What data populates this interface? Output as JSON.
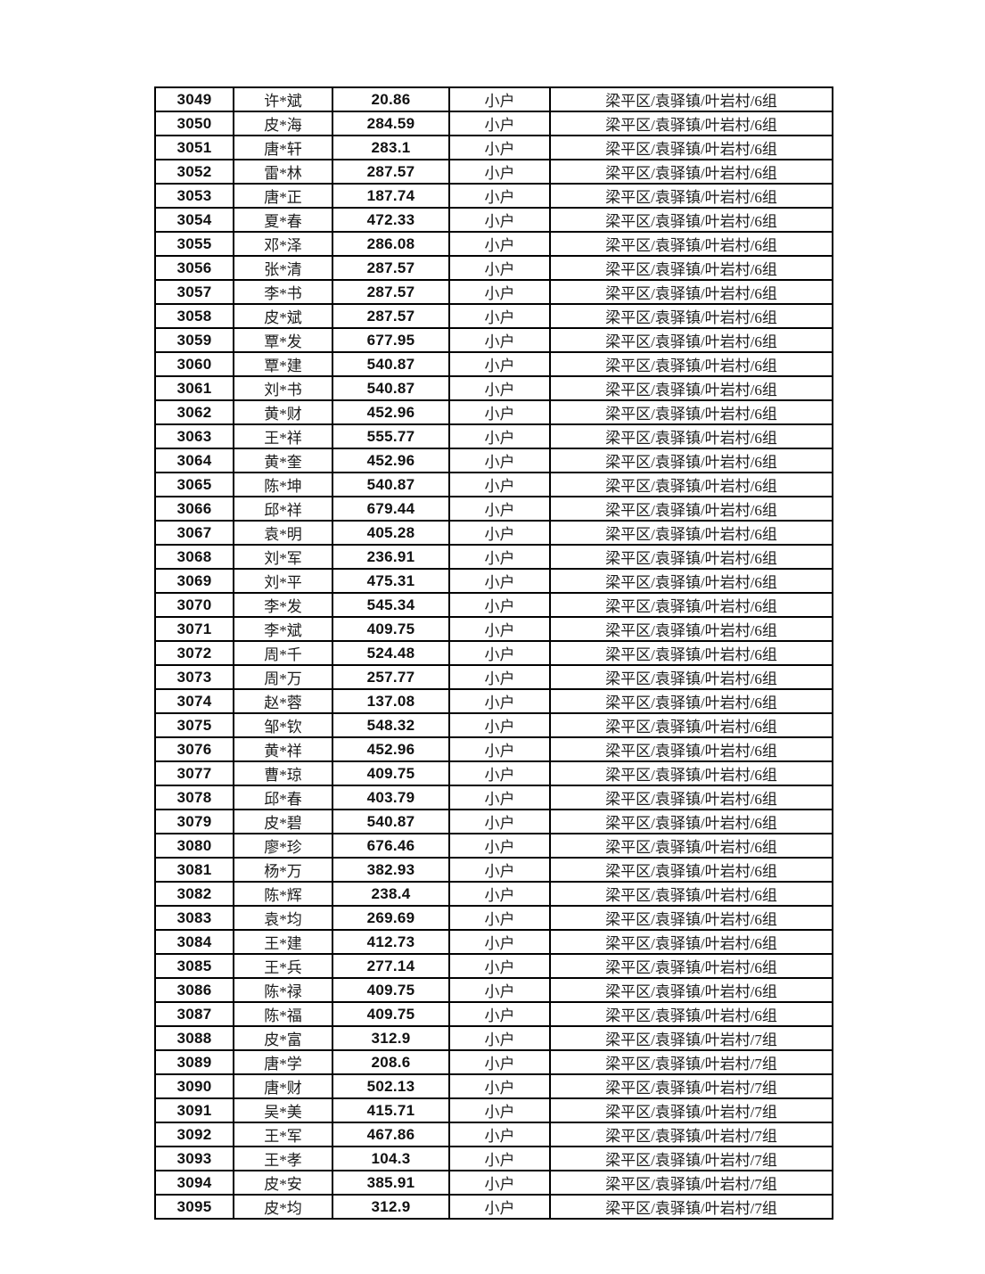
{
  "page": {
    "background_color": "#ffffff",
    "border_color": "#000000",
    "text_color": "#111111"
  },
  "table": {
    "columns": [
      "id",
      "name",
      "amount",
      "household-type",
      "address"
    ],
    "rows": [
      [
        "3049",
        "许*斌",
        "20.86",
        "小户",
        "梁平区/袁驿镇/叶岩村/6组"
      ],
      [
        "3050",
        "皮*海",
        "284.59",
        "小户",
        "梁平区/袁驿镇/叶岩村/6组"
      ],
      [
        "3051",
        "唐*轩",
        "283.1",
        "小户",
        "梁平区/袁驿镇/叶岩村/6组"
      ],
      [
        "3052",
        "雷*林",
        "287.57",
        "小户",
        "梁平区/袁驿镇/叶岩村/6组"
      ],
      [
        "3053",
        "唐*正",
        "187.74",
        "小户",
        "梁平区/袁驿镇/叶岩村/6组"
      ],
      [
        "3054",
        "夏*春",
        "472.33",
        "小户",
        "梁平区/袁驿镇/叶岩村/6组"
      ],
      [
        "3055",
        "邓*泽",
        "286.08",
        "小户",
        "梁平区/袁驿镇/叶岩村/6组"
      ],
      [
        "3056",
        "张*清",
        "287.57",
        "小户",
        "梁平区/袁驿镇/叶岩村/6组"
      ],
      [
        "3057",
        "李*书",
        "287.57",
        "小户",
        "梁平区/袁驿镇/叶岩村/6组"
      ],
      [
        "3058",
        "皮*斌",
        "287.57",
        "小户",
        "梁平区/袁驿镇/叶岩村/6组"
      ],
      [
        "3059",
        "覃*发",
        "677.95",
        "小户",
        "梁平区/袁驿镇/叶岩村/6组"
      ],
      [
        "3060",
        "覃*建",
        "540.87",
        "小户",
        "梁平区/袁驿镇/叶岩村/6组"
      ],
      [
        "3061",
        "刘*书",
        "540.87",
        "小户",
        "梁平区/袁驿镇/叶岩村/6组"
      ],
      [
        "3062",
        "黄*财",
        "452.96",
        "小户",
        "梁平区/袁驿镇/叶岩村/6组"
      ],
      [
        "3063",
        "王*祥",
        "555.77",
        "小户",
        "梁平区/袁驿镇/叶岩村/6组"
      ],
      [
        "3064",
        "黄*奎",
        "452.96",
        "小户",
        "梁平区/袁驿镇/叶岩村/6组"
      ],
      [
        "3065",
        "陈*坤",
        "540.87",
        "小户",
        "梁平区/袁驿镇/叶岩村/6组"
      ],
      [
        "3066",
        "邱*祥",
        "679.44",
        "小户",
        "梁平区/袁驿镇/叶岩村/6组"
      ],
      [
        "3067",
        "袁*明",
        "405.28",
        "小户",
        "梁平区/袁驿镇/叶岩村/6组"
      ],
      [
        "3068",
        "刘*军",
        "236.91",
        "小户",
        "梁平区/袁驿镇/叶岩村/6组"
      ],
      [
        "3069",
        "刘*平",
        "475.31",
        "小户",
        "梁平区/袁驿镇/叶岩村/6组"
      ],
      [
        "3070",
        "李*发",
        "545.34",
        "小户",
        "梁平区/袁驿镇/叶岩村/6组"
      ],
      [
        "3071",
        "李*斌",
        "409.75",
        "小户",
        "梁平区/袁驿镇/叶岩村/6组"
      ],
      [
        "3072",
        "周*千",
        "524.48",
        "小户",
        "梁平区/袁驿镇/叶岩村/6组"
      ],
      [
        "3073",
        "周*万",
        "257.77",
        "小户",
        "梁平区/袁驿镇/叶岩村/6组"
      ],
      [
        "3074",
        "赵*蓉",
        "137.08",
        "小户",
        "梁平区/袁驿镇/叶岩村/6组"
      ],
      [
        "3075",
        "邹*钦",
        "548.32",
        "小户",
        "梁平区/袁驿镇/叶岩村/6组"
      ],
      [
        "3076",
        "黄*祥",
        "452.96",
        "小户",
        "梁平区/袁驿镇/叶岩村/6组"
      ],
      [
        "3077",
        "曹*琼",
        "409.75",
        "小户",
        "梁平区/袁驿镇/叶岩村/6组"
      ],
      [
        "3078",
        "邱*春",
        "403.79",
        "小户",
        "梁平区/袁驿镇/叶岩村/6组"
      ],
      [
        "3079",
        "皮*碧",
        "540.87",
        "小户",
        "梁平区/袁驿镇/叶岩村/6组"
      ],
      [
        "3080",
        "廖*珍",
        "676.46",
        "小户",
        "梁平区/袁驿镇/叶岩村/6组"
      ],
      [
        "3081",
        "杨*万",
        "382.93",
        "小户",
        "梁平区/袁驿镇/叶岩村/6组"
      ],
      [
        "3082",
        "陈*辉",
        "238.4",
        "小户",
        "梁平区/袁驿镇/叶岩村/6组"
      ],
      [
        "3083",
        "袁*均",
        "269.69",
        "小户",
        "梁平区/袁驿镇/叶岩村/6组"
      ],
      [
        "3084",
        "王*建",
        "412.73",
        "小户",
        "梁平区/袁驿镇/叶岩村/6组"
      ],
      [
        "3085",
        "王*兵",
        "277.14",
        "小户",
        "梁平区/袁驿镇/叶岩村/6组"
      ],
      [
        "3086",
        "陈*禄",
        "409.75",
        "小户",
        "梁平区/袁驿镇/叶岩村/6组"
      ],
      [
        "3087",
        "陈*福",
        "409.75",
        "小户",
        "梁平区/袁驿镇/叶岩村/6组"
      ],
      [
        "3088",
        "皮*富",
        "312.9",
        "小户",
        "梁平区/袁驿镇/叶岩村/7组"
      ],
      [
        "3089",
        "唐*学",
        "208.6",
        "小户",
        "梁平区/袁驿镇/叶岩村/7组"
      ],
      [
        "3090",
        "唐*财",
        "502.13",
        "小户",
        "梁平区/袁驿镇/叶岩村/7组"
      ],
      [
        "3091",
        "吴*美",
        "415.71",
        "小户",
        "梁平区/袁驿镇/叶岩村/7组"
      ],
      [
        "3092",
        "王*军",
        "467.86",
        "小户",
        "梁平区/袁驿镇/叶岩村/7组"
      ],
      [
        "3093",
        "王*孝",
        "104.3",
        "小户",
        "梁平区/袁驿镇/叶岩村/7组"
      ],
      [
        "3094",
        "皮*安",
        "385.91",
        "小户",
        "梁平区/袁驿镇/叶岩村/7组"
      ],
      [
        "3095",
        "皮*均",
        "312.9",
        "小户",
        "梁平区/袁驿镇/叶岩村/7组"
      ]
    ]
  }
}
